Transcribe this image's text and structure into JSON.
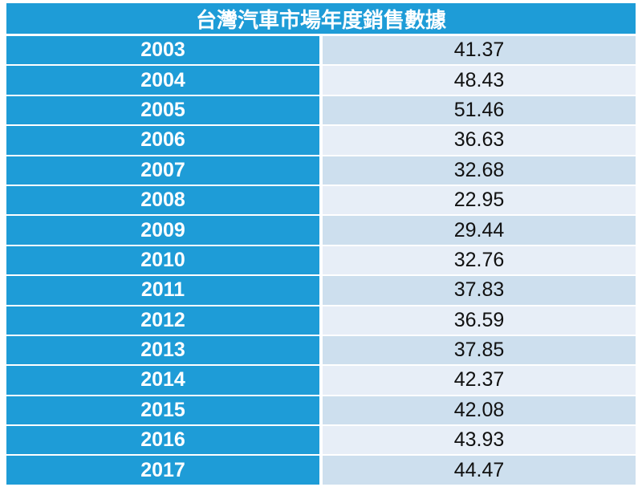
{
  "table": {
    "title": "台灣汽車市場年度銷售數據",
    "rows": [
      [
        "2003",
        "41.37"
      ],
      [
        "2004",
        "48.43"
      ],
      [
        "2005",
        "51.46"
      ],
      [
        "2006",
        "36.63"
      ],
      [
        "2007",
        "32.68"
      ],
      [
        "2008",
        "22.95"
      ],
      [
        "2009",
        "29.44"
      ],
      [
        "2010",
        "32.76"
      ],
      [
        "2011",
        "37.83"
      ],
      [
        "2012",
        "36.59"
      ],
      [
        "2013",
        "37.85"
      ],
      [
        "2014",
        "42.37"
      ],
      [
        "2015",
        "42.08"
      ],
      [
        "2016",
        "43.93"
      ],
      [
        "2017",
        "44.47"
      ]
    ]
  }
}
